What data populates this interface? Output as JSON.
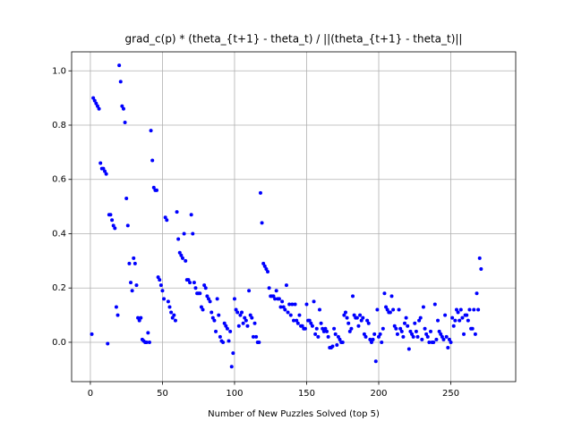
{
  "chart_data": {
    "type": "scatter",
    "title": "grad_c(p) * (theta_{t+1} - theta_t) / ||(theta_{t+1} - theta_t)||",
    "xlabel": "Number of New Puzzles Solved (top 5)",
    "color": "#0000ff",
    "grid": true,
    "xlim": [
      -13,
      295
    ],
    "ylim": [
      -0.145,
      1.07
    ],
    "xticks": [
      0,
      50,
      100,
      150,
      200,
      250
    ],
    "yticks": [
      {
        "value": 0,
        "label": "0.0"
      },
      {
        "value": 0.2,
        "label": "0.2"
      },
      {
        "value": 0.4,
        "label": "0.4"
      },
      {
        "value": 0.6,
        "label": "0.6"
      },
      {
        "value": 0.8,
        "label": "0.8"
      },
      {
        "value": 1,
        "label": "1.0"
      }
    ],
    "x": [
      1,
      2,
      3,
      4,
      5,
      6,
      7,
      8,
      9,
      10,
      11,
      12,
      13,
      14,
      15,
      16,
      17,
      18,
      19,
      20,
      21,
      22,
      23,
      24,
      25,
      26,
      27,
      28,
      29,
      30,
      31,
      32,
      33,
      34,
      35,
      36,
      37,
      38,
      39,
      40,
      41,
      42,
      43,
      44,
      45,
      46,
      47,
      48,
      49,
      50,
      51,
      52,
      53,
      54,
      55,
      56,
      57,
      58,
      59,
      60,
      61,
      62,
      63,
      64,
      65,
      66,
      67,
      68,
      69,
      70,
      71,
      72,
      73,
      74,
      75,
      76,
      77,
      78,
      79,
      80,
      81,
      82,
      83,
      84,
      85,
      86,
      87,
      88,
      89,
      90,
      91,
      92,
      93,
      94,
      95,
      96,
      97,
      98,
      99,
      100,
      101,
      102,
      103,
      104,
      105,
      106,
      107,
      108,
      109,
      110,
      111,
      112,
      113,
      114,
      115,
      116,
      117,
      118,
      119,
      120,
      121,
      122,
      123,
      124,
      125,
      126,
      127,
      128,
      129,
      130,
      131,
      132,
      133,
      134,
      135,
      136,
      137,
      138,
      139,
      140,
      141,
      142,
      143,
      144,
      145,
      146,
      147,
      148,
      149,
      150,
      151,
      152,
      153,
      154,
      155,
      156,
      157,
      158,
      159,
      160,
      161,
      162,
      163,
      164,
      165,
      166,
      167,
      168,
      169,
      170,
      171,
      172,
      173,
      174,
      175,
      176,
      177,
      178,
      179,
      180,
      181,
      182,
      183,
      184,
      185,
      186,
      187,
      188,
      189,
      190,
      191,
      192,
      193,
      194,
      195,
      196,
      197,
      198,
      199,
      200,
      201,
      202,
      203,
      204,
      205,
      206,
      207,
      208,
      209,
      210,
      211,
      212,
      213,
      214,
      215,
      216,
      217,
      218,
      219,
      220,
      221,
      222,
      223,
      224,
      225,
      226,
      227,
      228,
      229,
      230,
      231,
      232,
      233,
      234,
      235,
      236,
      237,
      238,
      239,
      240,
      241,
      242,
      243,
      244,
      245,
      246,
      247,
      248,
      249,
      250,
      251,
      252,
      253,
      254,
      255,
      256,
      257,
      258,
      259,
      260,
      261,
      262,
      263,
      264,
      265,
      266,
      267,
      268,
      269,
      270,
      271
    ],
    "values": [
      0.03,
      0.9,
      0.89,
      0.88,
      0.87,
      0.86,
      0.66,
      0.64,
      0.64,
      0.63,
      0.62,
      -0.005,
      0.47,
      0.47,
      0.45,
      0.43,
      0.42,
      0.13,
      0.1,
      1.02,
      0.96,
      0.87,
      0.86,
      0.81,
      0.53,
      0.43,
      0.29,
      0.22,
      0.19,
      0.31,
      0.29,
      0.21,
      0.09,
      0.08,
      0.09,
      0.01,
      0.005,
      0.0,
      0.0,
      0.035,
      0.0,
      0.78,
      0.67,
      0.57,
      0.56,
      0.56,
      0.24,
      0.23,
      0.21,
      0.19,
      0.16,
      0.46,
      0.45,
      0.15,
      0.13,
      0.11,
      0.09,
      0.1,
      0.08,
      0.48,
      0.38,
      0.33,
      0.32,
      0.31,
      0.4,
      0.3,
      0.23,
      0.23,
      0.22,
      0.47,
      0.4,
      0.22,
      0.2,
      0.18,
      0.18,
      0.18,
      0.13,
      0.12,
      0.21,
      0.2,
      0.17,
      0.16,
      0.15,
      0.11,
      0.09,
      0.08,
      0.04,
      0.16,
      0.1,
      0.02,
      0.005,
      0.0,
      0.07,
      0.06,
      0.05,
      0.005,
      0.04,
      -0.09,
      -0.04,
      0.16,
      0.12,
      0.11,
      0.06,
      0.1,
      0.11,
      0.07,
      0.09,
      0.08,
      0.06,
      0.19,
      0.1,
      0.09,
      0.02,
      0.07,
      0.02,
      0.0,
      0.0,
      0.55,
      0.44,
      0.29,
      0.28,
      0.27,
      0.26,
      0.2,
      0.17,
      0.17,
      0.17,
      0.16,
      0.19,
      0.16,
      0.16,
      0.13,
      0.15,
      0.13,
      0.12,
      0.21,
      0.11,
      0.14,
      0.1,
      0.14,
      0.08,
      0.14,
      0.08,
      0.07,
      0.1,
      0.06,
      0.06,
      0.05,
      0.05,
      0.14,
      0.08,
      0.08,
      0.07,
      0.06,
      0.15,
      0.03,
      0.05,
      0.02,
      0.12,
      0.07,
      0.05,
      0.04,
      0.05,
      0.04,
      0.02,
      -0.02,
      -0.02,
      -0.015,
      0.05,
      0.03,
      -0.01,
      0.02,
      0.01,
      0.0,
      0.0,
      0.1,
      0.11,
      0.09,
      0.07,
      0.04,
      0.05,
      0.17,
      0.1,
      0.09,
      0.09,
      0.06,
      0.1,
      0.08,
      0.09,
      0.03,
      0.02,
      0.08,
      0.07,
      0.01,
      0.0,
      0.01,
      0.03,
      -0.07,
      0.12,
      0.02,
      0.03,
      0.0,
      0.05,
      0.18,
      0.13,
      0.12,
      0.11,
      0.11,
      0.17,
      0.12,
      0.06,
      0.05,
      0.03,
      0.12,
      0.05,
      0.04,
      0.02,
      0.07,
      0.09,
      0.06,
      -0.025,
      0.04,
      0.03,
      0.02,
      0.07,
      0.04,
      0.02,
      0.08,
      0.09,
      0.01,
      0.13,
      0.05,
      0.03,
      0.02,
      0.0,
      0.04,
      0.0,
      0.0,
      0.14,
      0.01,
      0.08,
      0.04,
      0.03,
      0.02,
      0.01,
      0.1,
      0.02,
      -0.02,
      0.01,
      0.0,
      0.09,
      0.06,
      0.08,
      0.12,
      0.11,
      0.08,
      0.12,
      0.09,
      0.03,
      0.1,
      0.1,
      0.08,
      0.12,
      0.05,
      0.05,
      0.12,
      0.03,
      0.18,
      0.12,
      0.31,
      0.27
    ]
  }
}
